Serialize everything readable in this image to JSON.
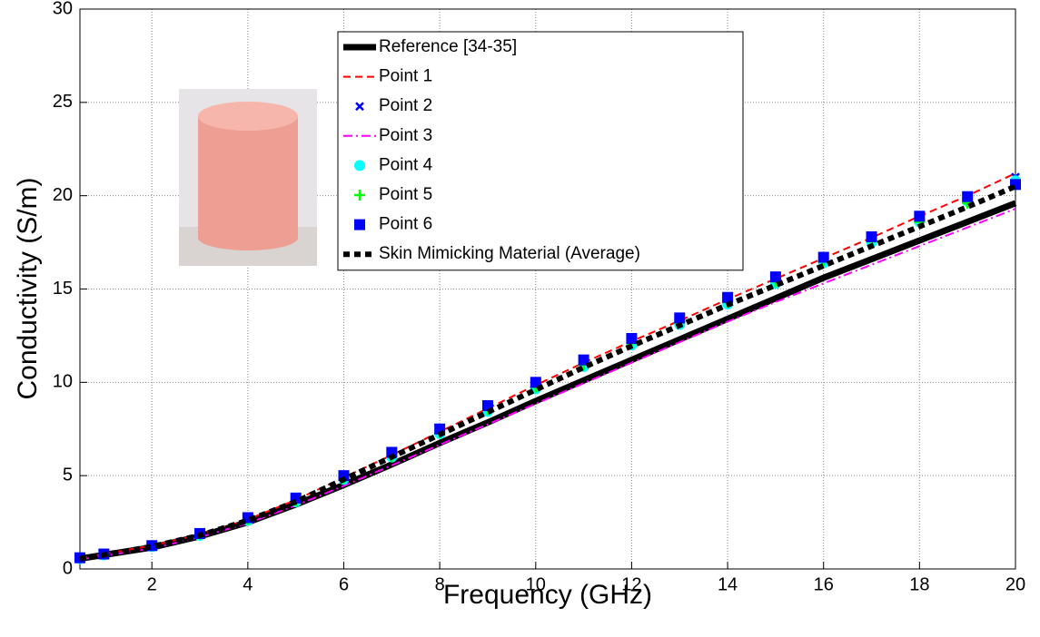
{
  "chart_data": {
    "type": "line",
    "xlabel": "Frequency (GHz)",
    "ylabel": "Conductivity (S/m)",
    "x": [
      0.5,
      1,
      2,
      3,
      4,
      5,
      6,
      7,
      8,
      9,
      10,
      11,
      12,
      13,
      14,
      15,
      16,
      17,
      18,
      19,
      20
    ],
    "xlim": [
      0.5,
      20
    ],
    "xticks": [
      2,
      4,
      6,
      8,
      10,
      12,
      14,
      16,
      18,
      20
    ],
    "ylim": [
      0,
      30
    ],
    "yticks": [
      0,
      5,
      10,
      15,
      20,
      25,
      30
    ],
    "grid": true,
    "legend": "top",
    "series": [
      {
        "name": "Reference [34-35]",
        "color": "#000000",
        "style": "line",
        "dash": "solid",
        "width": 7,
        "values": [
          0.55,
          0.75,
          1.15,
          1.75,
          2.5,
          3.45,
          4.5,
          5.6,
          6.75,
          7.85,
          9.0,
          10.1,
          11.2,
          12.3,
          13.4,
          14.5,
          15.6,
          16.6,
          17.6,
          18.6,
          19.6
        ]
      },
      {
        "name": "Point 1",
        "color": "#ff0000",
        "style": "line",
        "dash": "dashed",
        "width": 2,
        "values": [
          0.6,
          0.8,
          1.25,
          1.85,
          2.65,
          3.7,
          4.9,
          6.1,
          7.35,
          8.6,
          9.85,
          11.05,
          12.2,
          13.3,
          14.45,
          15.55,
          16.65,
          17.75,
          18.9,
          20.0,
          21.2
        ]
      },
      {
        "name": "Point 2",
        "color": "#0000ff",
        "style": "marker",
        "marker": "x",
        "values": [
          0.6,
          0.8,
          1.3,
          1.9,
          2.7,
          3.75,
          4.95,
          6.2,
          7.45,
          8.7,
          9.95,
          11.15,
          12.3,
          13.4,
          14.5,
          15.6,
          16.7,
          17.8,
          18.9,
          19.9,
          21.0
        ]
      },
      {
        "name": "Point 3",
        "color": "#ff00ff",
        "style": "line",
        "dash": "dashdot",
        "width": 2,
        "values": [
          0.5,
          0.7,
          1.1,
          1.7,
          2.45,
          3.4,
          4.45,
          5.55,
          6.65,
          7.75,
          8.85,
          9.95,
          11.05,
          12.15,
          13.25,
          14.3,
          15.3,
          16.3,
          17.3,
          18.3,
          19.3
        ]
      },
      {
        "name": "Point 4",
        "color": "#00ffff",
        "style": "marker",
        "marker": "circle",
        "values": [
          0.55,
          0.75,
          1.2,
          1.8,
          2.6,
          3.6,
          4.8,
          6.0,
          7.25,
          8.45,
          9.65,
          10.85,
          12.0,
          13.1,
          14.2,
          15.3,
          16.4,
          17.5,
          18.6,
          19.7,
          20.8
        ]
      },
      {
        "name": "Point 5",
        "color": "#00ff00",
        "style": "marker",
        "marker": "plus",
        "values": [
          0.6,
          0.8,
          1.25,
          1.85,
          2.65,
          3.65,
          4.85,
          6.05,
          7.3,
          8.55,
          9.75,
          10.95,
          12.1,
          13.2,
          14.3,
          15.4,
          16.5,
          17.55,
          18.6,
          19.6,
          20.6
        ]
      },
      {
        "name": "Point 6",
        "color": "#0000ff",
        "style": "marker",
        "marker": "square",
        "values": [
          0.6,
          0.8,
          1.25,
          1.9,
          2.75,
          3.8,
          5.0,
          6.25,
          7.5,
          8.75,
          10.0,
          11.2,
          12.35,
          13.45,
          14.55,
          15.65,
          16.7,
          17.8,
          18.9,
          19.95,
          20.6
        ]
      },
      {
        "name": "Skin Mimicking Material (Average)",
        "color": "#000000",
        "style": "line",
        "dash": "dotted",
        "width": 6,
        "values": [
          0.55,
          0.75,
          1.2,
          1.8,
          2.6,
          3.6,
          4.8,
          6.0,
          7.2,
          8.4,
          9.6,
          10.8,
          11.95,
          13.05,
          14.15,
          15.2,
          16.25,
          17.3,
          18.35,
          19.4,
          20.5
        ]
      }
    ]
  }
}
